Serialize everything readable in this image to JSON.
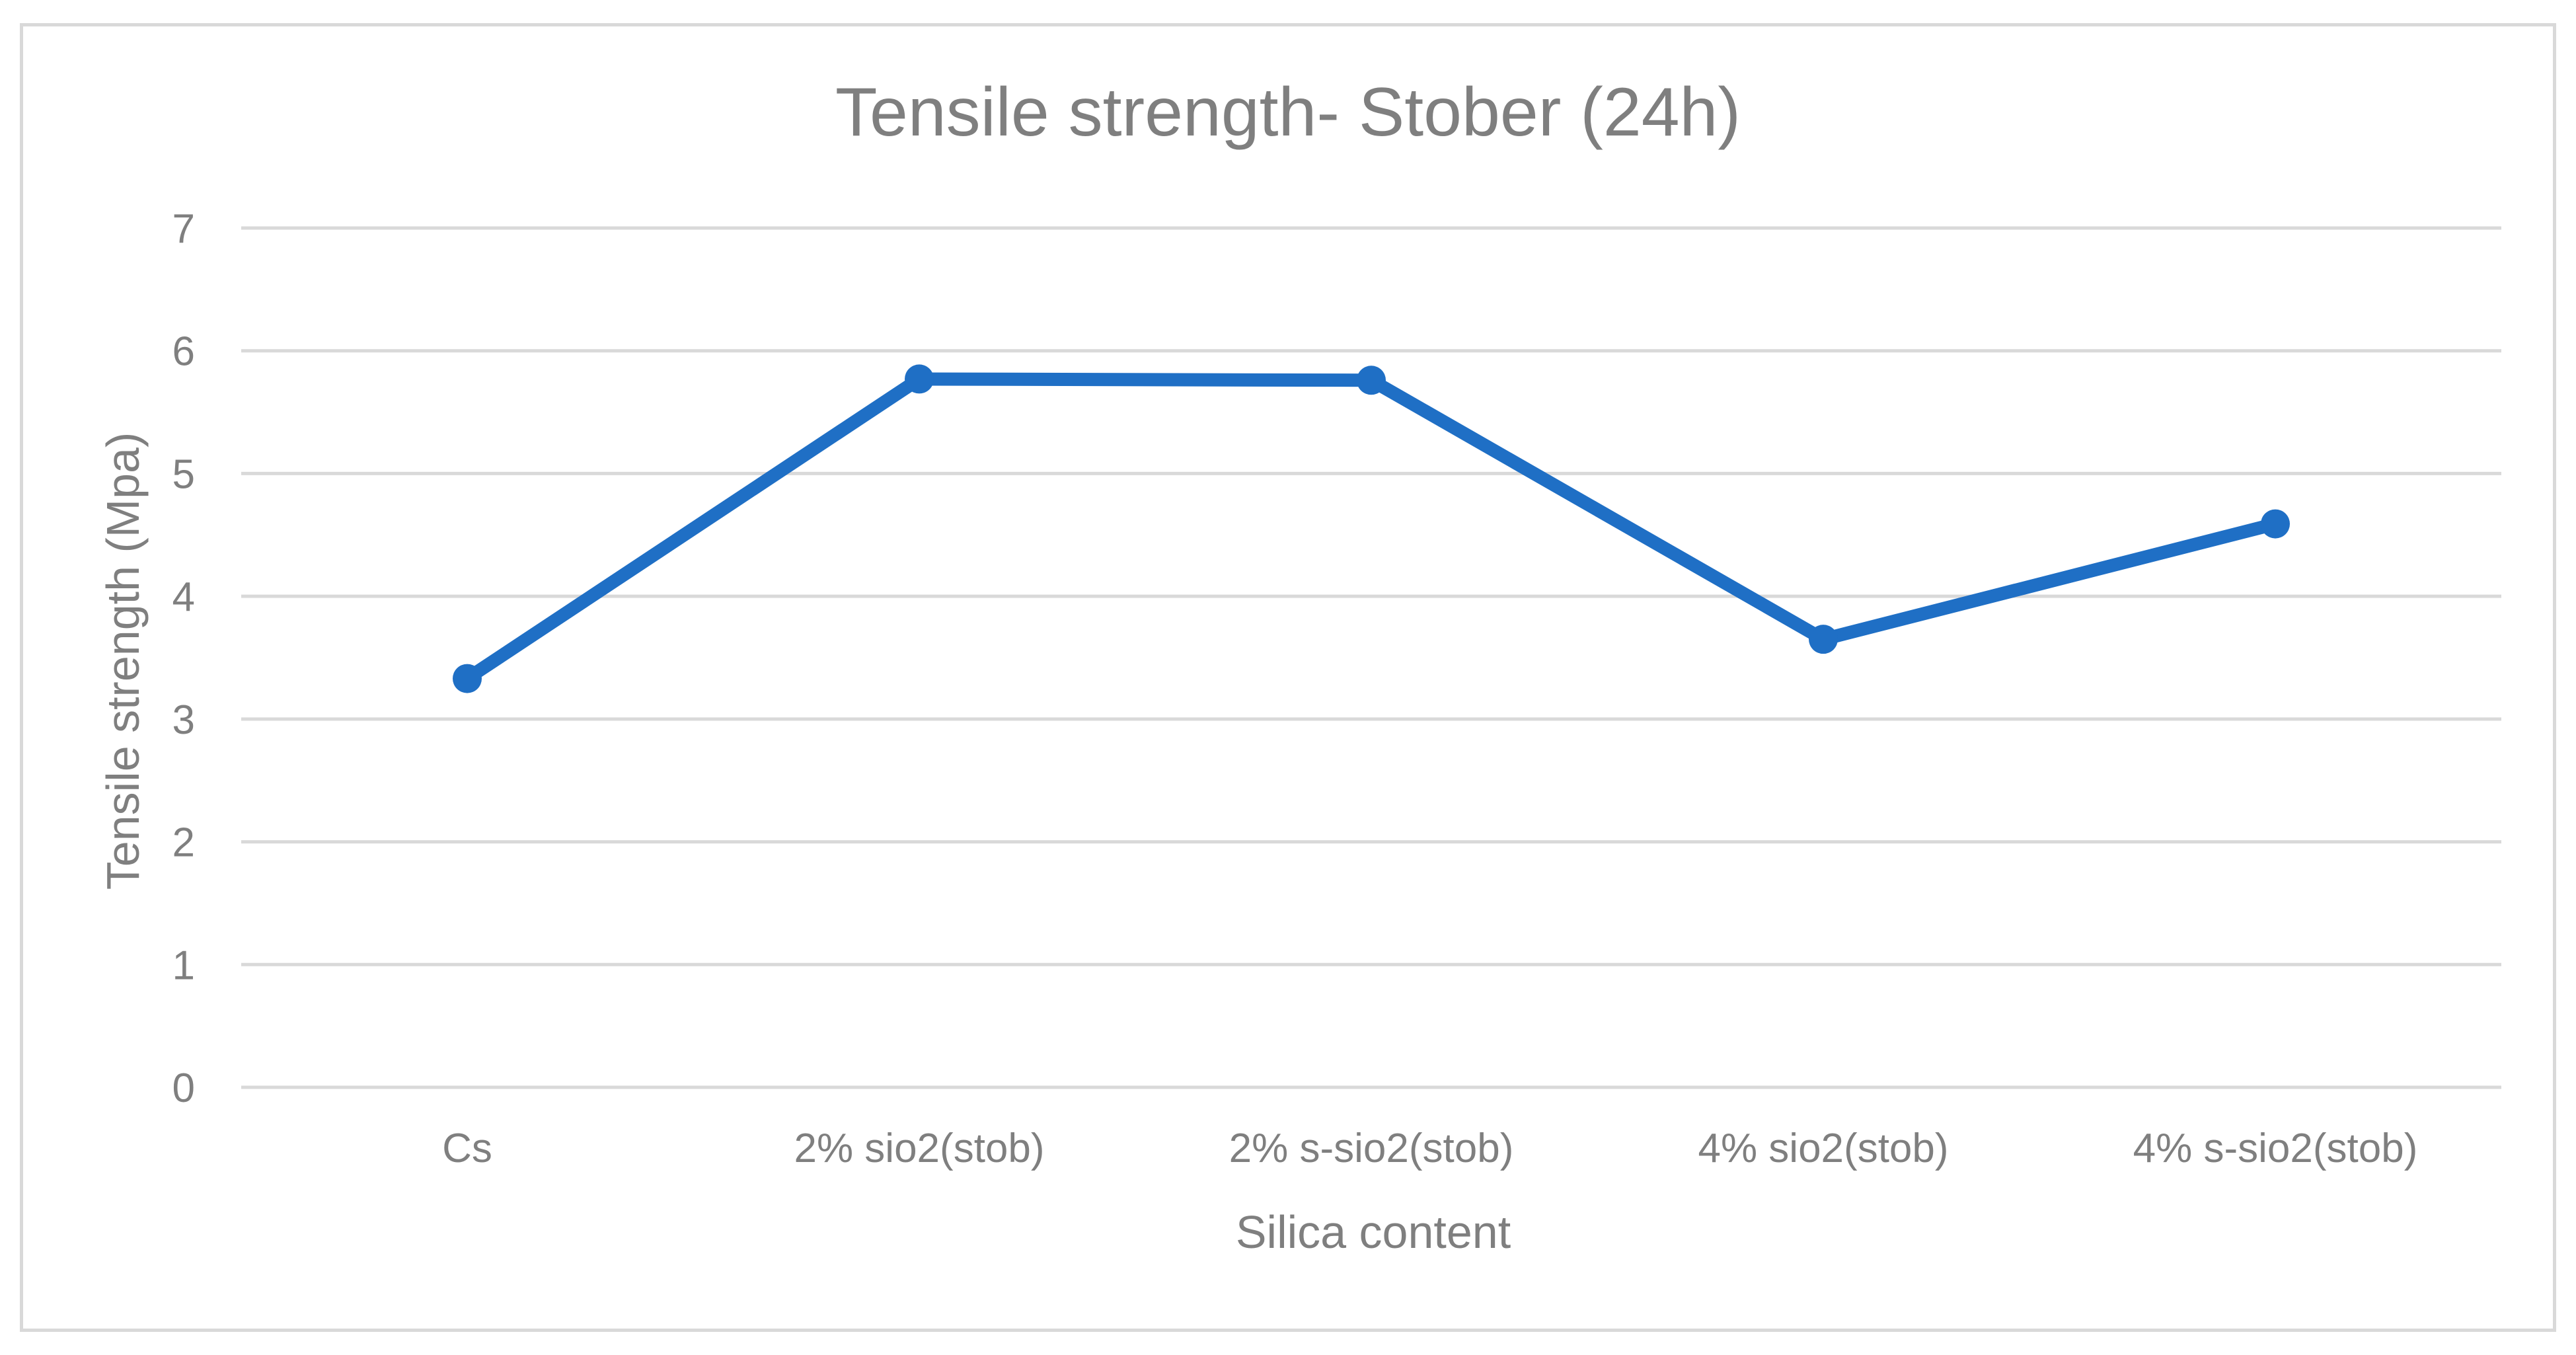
{
  "chart_data": {
    "type": "line",
    "title": "Tensile strength- Stober (24h)",
    "xlabel": "Silica content",
    "ylabel": "Tensile strength (Mpa)",
    "categories": [
      "Cs",
      "2% sio2(stob)",
      "2% s-sio2(stob)",
      "4% sio2(stob)",
      "4% s-sio2(stob)"
    ],
    "series": [
      {
        "values": [
          3.33,
          5.77,
          5.76,
          3.65,
          4.59
        ],
        "color": "#1f6fc5"
      }
    ],
    "ylim": [
      0,
      7
    ],
    "yticks": [
      0,
      1,
      2,
      3,
      4,
      5,
      6,
      7
    ],
    "grid": true,
    "legend": "none",
    "colors": {
      "gridline": "#d9d9d9",
      "text": "#7f7f7f",
      "frame": "#d9d9d9"
    }
  }
}
